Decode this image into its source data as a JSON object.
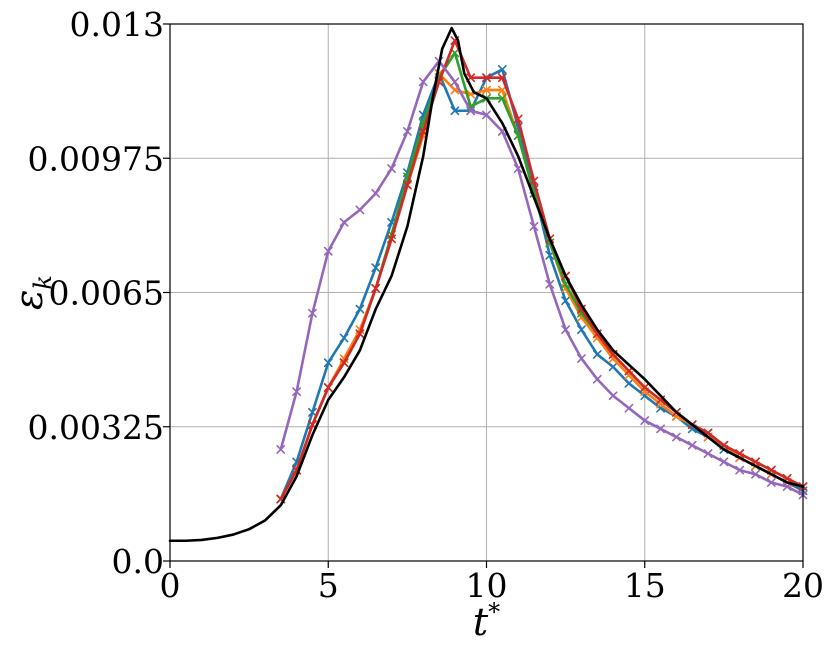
{
  "chart_data": {
    "type": "line",
    "xlabel": "t*",
    "ylabel": "ε_k",
    "xlim": [
      0,
      20
    ],
    "ylim": [
      0,
      0.013
    ],
    "xticks": [
      0,
      5,
      10,
      15,
      20
    ],
    "xtick_labels": [
      "0",
      "5",
      "10",
      "15",
      "20"
    ],
    "yticks": [
      0,
      0.00325,
      0.0065,
      0.00975,
      0.013
    ],
    "ytick_labels": [
      "0.0",
      "0.00325",
      "0.0065",
      "0.00975",
      "0.013"
    ],
    "grid": true,
    "legend": "none",
    "series": [
      {
        "color": "#000000",
        "marker": "none",
        "x": [
          0,
          0.5,
          1,
          1.5,
          2,
          2.5,
          3,
          3.5,
          4,
          4.5,
          5,
          5.5,
          6,
          6.5,
          7,
          7.5,
          8,
          8.3,
          8.6,
          8.9,
          9.1,
          9.3,
          9.6,
          10,
          10.5,
          11,
          11.5,
          12,
          12.5,
          13,
          13.5,
          14,
          14.5,
          15,
          15.5,
          16,
          16.5,
          17,
          17.5,
          18,
          18.5,
          19,
          19.5,
          20
        ],
        "y": [
          0.00049,
          0.00049,
          0.00051,
          0.00056,
          0.00064,
          0.00077,
          0.00098,
          0.00135,
          0.00205,
          0.00305,
          0.0039,
          0.00445,
          0.0051,
          0.0061,
          0.0069,
          0.0081,
          0.0098,
          0.0112,
          0.0124,
          0.0129,
          0.0126,
          0.0118,
          0.01135,
          0.0112,
          0.0106,
          0.0098,
          0.0088,
          0.0078,
          0.0069,
          0.0062,
          0.0056,
          0.0051,
          0.00475,
          0.0044,
          0.004,
          0.0036,
          0.0033,
          0.003,
          0.0027,
          0.0025,
          0.0023,
          0.0021,
          0.0019,
          0.0018
        ]
      },
      {
        "color": "#1f77b4",
        "marker": "x",
        "x": [
          3.5,
          4,
          4.5,
          5,
          5.5,
          6,
          6.5,
          7,
          7.5,
          8,
          8.5,
          9,
          9.5,
          10,
          10.5,
          11,
          11.5,
          12,
          12.5,
          13,
          13.5,
          14,
          14.5,
          15,
          15.5,
          16,
          16.5,
          17,
          17.5,
          18,
          18.5,
          19,
          19.5,
          20
        ],
        "y": [
          0.0015,
          0.0024,
          0.0036,
          0.0048,
          0.0054,
          0.0061,
          0.0071,
          0.0082,
          0.0094,
          0.0108,
          0.0118,
          0.0109,
          0.0109,
          0.0117,
          0.0119,
          0.0105,
          0.009,
          0.0074,
          0.0063,
          0.0056,
          0.005,
          0.0047,
          0.0043,
          0.004,
          0.0037,
          0.0035,
          0.0032,
          0.003,
          0.0027,
          0.0025,
          0.0023,
          0.0021,
          0.0019,
          0.0017
        ]
      },
      {
        "color": "#ff7f0e",
        "marker": "x",
        "x": [
          3.5,
          4,
          4.5,
          5,
          5.5,
          6,
          6.5,
          7,
          7.5,
          8,
          8.5,
          9,
          9.5,
          10,
          10.5,
          11,
          11.5,
          12,
          12.5,
          13,
          13.5,
          14,
          14.5,
          15,
          15.5,
          16,
          16.5,
          17,
          17.5,
          18,
          18.5,
          19,
          19.5,
          20
        ],
        "y": [
          0.0015,
          0.0022,
          0.0033,
          0.0042,
          0.0049,
          0.0056,
          0.0066,
          0.0078,
          0.0091,
          0.0103,
          0.0118,
          0.0114,
          0.0113,
          0.0114,
          0.0114,
          0.0103,
          0.0089,
          0.0077,
          0.0066,
          0.0059,
          0.0054,
          0.0049,
          0.0045,
          0.0041,
          0.0038,
          0.0035,
          0.0033,
          0.003,
          0.0028,
          0.0025,
          0.0023,
          0.0021,
          0.0019,
          0.0018
        ]
      },
      {
        "color": "#2ca02c",
        "marker": "x",
        "x": [
          3.5,
          4,
          4.5,
          5,
          5.5,
          6,
          6.5,
          7,
          7.5,
          8,
          8.5,
          9,
          9.5,
          10,
          10.5,
          11,
          11.5,
          12,
          12.5,
          13,
          13.5,
          14,
          14.5,
          15,
          15.5,
          16,
          16.5,
          17,
          17.5,
          18,
          18.5,
          19,
          19.5,
          20
        ],
        "y": [
          0.0015,
          0.0022,
          0.0033,
          0.0042,
          0.0048,
          0.0055,
          0.0066,
          0.0079,
          0.0093,
          0.0106,
          0.0117,
          0.0123,
          0.011,
          0.0112,
          0.0112,
          0.0103,
          0.0089,
          0.0077,
          0.0067,
          0.006,
          0.0055,
          0.005,
          0.0046,
          0.0042,
          0.0039,
          0.0036,
          0.0033,
          0.0031,
          0.0028,
          0.0026,
          0.0024,
          0.0022,
          0.002,
          0.0018
        ]
      },
      {
        "color": "#d62728",
        "marker": "x",
        "x": [
          3.5,
          4,
          4.5,
          5,
          5.5,
          6,
          6.5,
          7,
          7.5,
          8,
          8.5,
          9,
          9.5,
          10,
          10.5,
          11,
          11.5,
          12,
          12.5,
          13,
          13.5,
          14,
          14.5,
          15,
          15.5,
          16,
          16.5,
          17,
          17.5,
          18,
          18.5,
          19,
          19.5,
          20
        ],
        "y": [
          0.0015,
          0.0022,
          0.0033,
          0.0042,
          0.0048,
          0.0055,
          0.0066,
          0.0078,
          0.0091,
          0.0104,
          0.0116,
          0.0126,
          0.0117,
          0.0117,
          0.0117,
          0.0107,
          0.0092,
          0.0078,
          0.0069,
          0.0061,
          0.0055,
          0.005,
          0.0046,
          0.0042,
          0.0039,
          0.0036,
          0.0033,
          0.0031,
          0.0028,
          0.0026,
          0.0024,
          0.0022,
          0.002,
          0.0018
        ]
      },
      {
        "color": "#9467bd",
        "marker": "x",
        "x": [
          3.5,
          4,
          4.5,
          5,
          5.5,
          6,
          6.5,
          7,
          7.5,
          8,
          8.5,
          9,
          9.5,
          10,
          10.5,
          11,
          11.5,
          12,
          12.5,
          13,
          13.5,
          14,
          14.5,
          15,
          15.5,
          16,
          16.5,
          17,
          17.5,
          18,
          18.5,
          19,
          19.5,
          20
        ],
        "y": [
          0.0027,
          0.0041,
          0.006,
          0.0075,
          0.0082,
          0.0085,
          0.0089,
          0.0095,
          0.0104,
          0.0116,
          0.0121,
          0.0116,
          0.0109,
          0.0108,
          0.0104,
          0.0095,
          0.0081,
          0.0067,
          0.0056,
          0.0049,
          0.0044,
          0.004,
          0.0037,
          0.0034,
          0.0032,
          0.003,
          0.0028,
          0.0026,
          0.0024,
          0.0022,
          0.0021,
          0.0019,
          0.0018,
          0.0016
        ]
      }
    ]
  }
}
